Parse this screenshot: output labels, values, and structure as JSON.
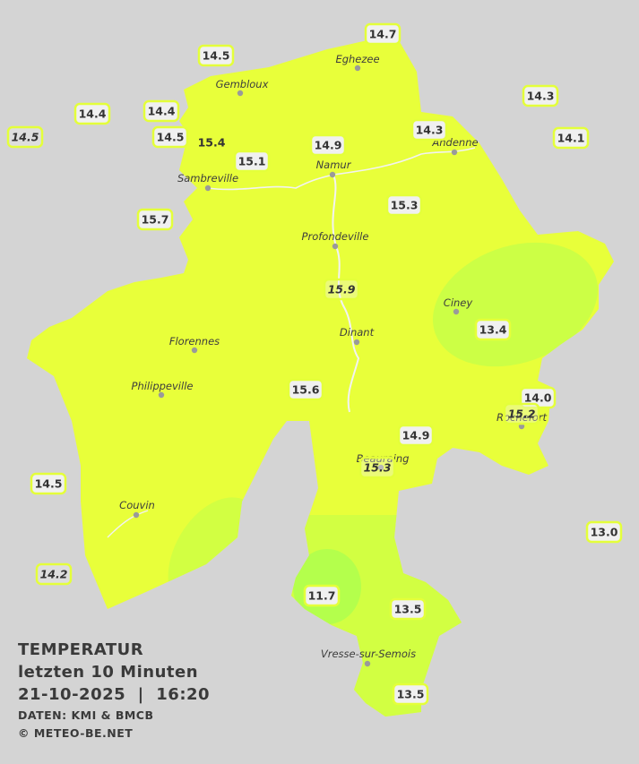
{
  "towns": [
    "Eghezee",
    "Gembloux",
    "Andenne",
    "Namur",
    "Sambreville",
    "Profondeville",
    "Ciney",
    "Dinant",
    "Florennes",
    "Philippeville",
    "Rochefort",
    "Beauraing",
    "Couvin",
    "Vresse-sur-Semois"
  ],
  "readings": [
    "14.7",
    "14.5",
    "14.3",
    "14.4",
    "14.4",
    "14.5",
    "14.5",
    "15.4",
    "14.3",
    "14.1",
    "14.9",
    "15.1",
    "15.7",
    "15.3",
    "15.9",
    "13.4",
    "15.6",
    "14.0",
    "15.2",
    "14.9",
    "15.3",
    "14.5",
    "13.0",
    "14.2",
    "11.7",
    "13.5",
    "13.5"
  ],
  "legend": {
    "title": "TEMPERATUR",
    "period": "letzten 10 Minuten",
    "datetime": "21-10-2025  |  16:20",
    "source": "DATEN: KMI & BMCB",
    "copyright": "© METEO-BE.NET"
  }
}
